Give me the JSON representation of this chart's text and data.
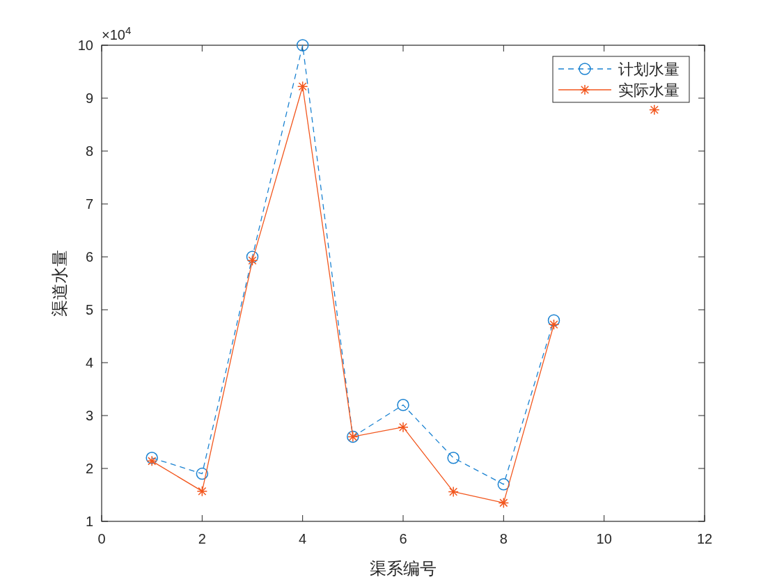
{
  "chart_data": {
    "type": "line",
    "xlabel": "渠系编号",
    "ylabel": "渠道水量",
    "annotations": [
      "×10$^{4}$"
    ],
    "legend": "top right",
    "grid": false,
    "xlim": [
      0,
      12
    ],
    "xticks": [
      0,
      2,
      4,
      6,
      8,
      10,
      12
    ],
    "ylim": [
      1,
      10
    ],
    "yticks": [
      1,
      2,
      3,
      4,
      5,
      6,
      7,
      8,
      9,
      10
    ],
    "series": [
      {
        "name": "计划水量",
        "color": "#1a82d1",
        "marker": "circle",
        "line_style": "dashed",
        "x": [
          1,
          2,
          3,
          4,
          5,
          6,
          7,
          8,
          9
        ],
        "values": [
          2.2,
          1.9,
          6.0,
          10.0,
          2.6,
          3.2,
          2.2,
          1.7,
          4.8
        ]
      },
      {
        "name": "实际水量",
        "color": "#f2561d",
        "marker": "cross",
        "line_style": "solid",
        "x": [
          1,
          2,
          3,
          4,
          5,
          6,
          7,
          8,
          9
        ],
        "values": [
          2.14,
          1.57,
          5.93,
          9.22,
          2.6,
          2.78,
          1.56,
          1.35,
          4.72
        ]
      },
      {
        "type": "scatter",
        "color": "#f2561d",
        "marker": "cross",
        "x": [
          11
        ],
        "values": [
          8.78
        ]
      }
    ]
  }
}
